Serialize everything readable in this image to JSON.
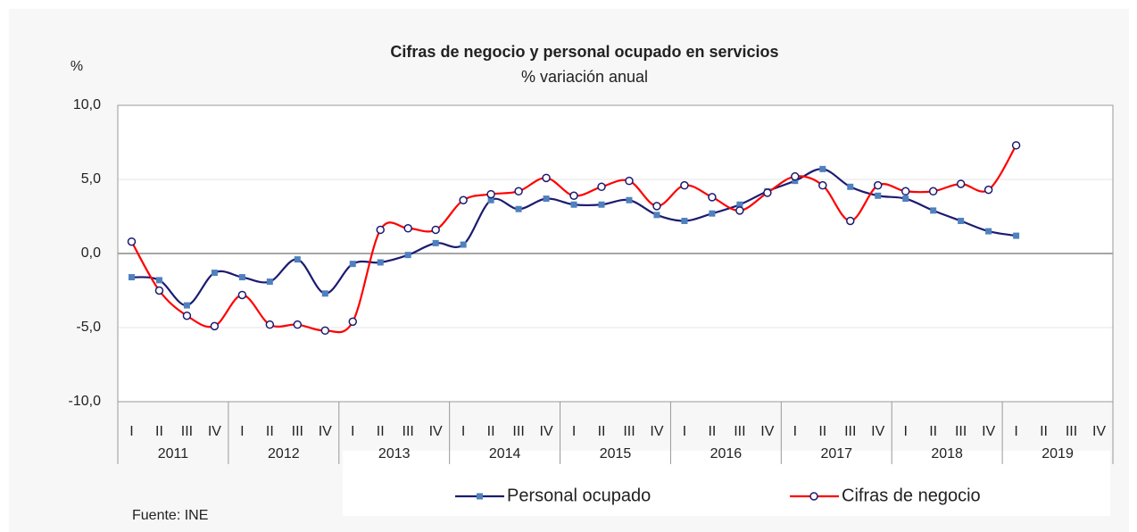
{
  "chart_data": {
    "type": "line",
    "title": "Cifras de negocio y personal ocupado en servicios",
    "subtitle": "% variación anual",
    "y_label": "%",
    "source": "Fuente: INE",
    "categories": [
      "I",
      "II",
      "III",
      "IV",
      "I",
      "II",
      "III",
      "IV",
      "I",
      "II",
      "III",
      "IV",
      "I",
      "II",
      "III",
      "IV",
      "I",
      "II",
      "III",
      "IV",
      "I",
      "II",
      "III",
      "IV",
      "I",
      "II",
      "III",
      "IV",
      "I",
      "II",
      "III",
      "IV",
      "I",
      "II",
      "III",
      "IV"
    ],
    "years": [
      "2011",
      "2012",
      "2013",
      "2014",
      "2015",
      "2016",
      "2017",
      "2018",
      "2019"
    ],
    "series": [
      {
        "name": "Personal ocupado",
        "color": "#1b1b72",
        "marker_color": "#4f81bd",
        "marker": "square",
        "values": [
          -1.6,
          -1.8,
          -3.5,
          -1.3,
          -1.6,
          -1.9,
          -0.4,
          -2.7,
          -0.7,
          -0.6,
          -0.1,
          0.7,
          0.6,
          3.6,
          3.0,
          3.7,
          3.3,
          3.3,
          3.6,
          2.6,
          2.2,
          2.7,
          3.3,
          4.2,
          4.9,
          5.7,
          4.5,
          3.9,
          3.7,
          2.9,
          2.2,
          1.5,
          1.2,
          null,
          null,
          null
        ]
      },
      {
        "name": "Cifras de negocio",
        "color": "#ff0000",
        "marker_color": "#1b1b72",
        "marker": "circle",
        "values": [
          0.8,
          -2.5,
          -4.2,
          -4.9,
          -2.8,
          -4.8,
          -4.8,
          -5.2,
          -4.6,
          1.6,
          1.7,
          1.6,
          3.6,
          4.0,
          4.2,
          5.1,
          3.9,
          4.5,
          4.9,
          3.2,
          4.6,
          3.8,
          2.9,
          4.1,
          5.2,
          4.6,
          2.2,
          4.6,
          4.2,
          4.2,
          4.7,
          4.3,
          7.3,
          null,
          null,
          null
        ]
      }
    ],
    "ylim": [
      -10,
      10
    ],
    "yticks": [
      {
        "value": -10,
        "label": "-10,0"
      },
      {
        "value": -5,
        "label": "-5,0"
      },
      {
        "value": 0,
        "label": "0,0"
      },
      {
        "value": 5,
        "label": "5,0"
      },
      {
        "value": 10,
        "label": "10,0"
      }
    ],
    "grid": true,
    "legend": "bottom"
  }
}
